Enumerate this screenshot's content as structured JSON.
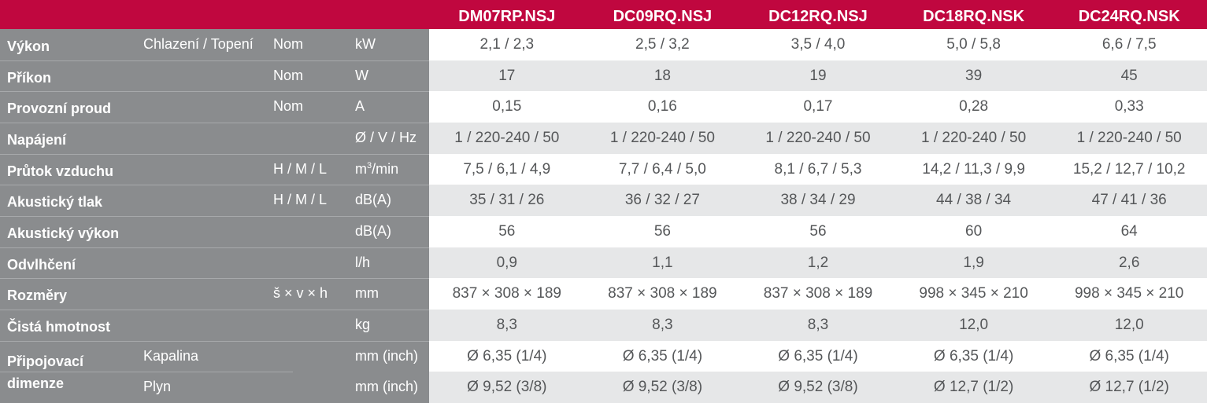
{
  "models": [
    "DM07RP.NSJ",
    "DC09RQ.NSJ",
    "DC12RQ.NSJ",
    "DC18RQ.NSK",
    "DC24RQ.NSK"
  ],
  "rows": [
    {
      "label": "Výkon",
      "sub": "Chlazení / Topení",
      "mode": "Nom",
      "unit": "kW",
      "values": [
        "2,1 / 2,3",
        "2,5 / 3,2",
        "3,5 / 4,0",
        "5,0 / 5,8",
        "6,6 / 7,5"
      ]
    },
    {
      "label": "Příkon",
      "sub": "",
      "mode": "Nom",
      "unit": "W",
      "values": [
        "17",
        "18",
        "19",
        "39",
        "45"
      ]
    },
    {
      "label": "Provozní proud",
      "sub": "",
      "mode": "Nom",
      "unit": "A",
      "values": [
        "0,15",
        "0,16",
        "0,17",
        "0,28",
        "0,33"
      ]
    },
    {
      "label": "Napájení",
      "sub": "",
      "mode": "",
      "unit": "Ø / V / Hz",
      "values": [
        "1 / 220-240 / 50",
        "1 / 220-240 / 50",
        "1 / 220-240 / 50",
        "1 / 220-240 / 50",
        "1 / 220-240 / 50"
      ]
    },
    {
      "label": "Průtok vzduchu",
      "sub": "",
      "mode": "H / M / L",
      "unit": "m",
      "unit_sup": "3",
      "unit_suffix": "/min",
      "values": [
        "7,5 / 6,1 / 4,9",
        "7,7 / 6,4 / 5,0",
        "8,1 / 6,7 / 5,3",
        "14,2 / 11,3 / 9,9",
        "15,2 / 12,7 / 10,2"
      ]
    },
    {
      "label": "Akustický tlak",
      "sub": "",
      "mode": "H / M / L",
      "unit": "dB(A)",
      "values": [
        "35 / 31 / 26",
        "36 / 32 / 27",
        "38 / 34 / 29",
        "44 / 38 / 34",
        "47 / 41 / 36"
      ]
    },
    {
      "label": "Akustický výkon",
      "sub": "",
      "mode": "",
      "unit": "dB(A)",
      "values": [
        "56",
        "56",
        "56",
        "60",
        "64"
      ]
    },
    {
      "label": "Odvlhčení",
      "sub": "",
      "mode": "",
      "unit": "l/h",
      "values": [
        "0,9",
        "1,1",
        "1,2",
        "1,9",
        "2,6"
      ]
    },
    {
      "label": "Rozměry",
      "sub": "",
      "mode": "š × v × h",
      "unit": "mm",
      "values": [
        "837 × 308 × 189",
        "837 × 308 × 189",
        "837 × 308 × 189",
        "998 × 345 × 210",
        "998 × 345 × 210"
      ]
    },
    {
      "label": "Čistá hmotnost",
      "sub": "",
      "mode": "",
      "unit": "kg",
      "values": [
        "8,3",
        "8,3",
        "8,3",
        "12,0",
        "12,0"
      ]
    }
  ],
  "connection": {
    "label_line1": "Připojovací",
    "label_line2": "dimenze",
    "rows": [
      {
        "sub": "Kapalina",
        "unit": "mm (inch)",
        "values": [
          "Ø 6,35 (1/4)",
          "Ø 6,35 (1/4)",
          "Ø 6,35 (1/4)",
          "Ø 6,35 (1/4)",
          "Ø 6,35 (1/4)"
        ]
      },
      {
        "sub": "Plyn",
        "unit": "mm (inch)",
        "values": [
          "Ø 9,52 (3/8)",
          "Ø 9,52 (3/8)",
          "Ø 9,52 (3/8)",
          "Ø 12,7 (1/2)",
          "Ø 12,7 (1/2)"
        ]
      }
    ]
  },
  "colors": {
    "header_bg": "#c0073f",
    "label_bg": "#8a8c8e",
    "stripe_bg": "#e6e7e8",
    "value_text": "#555759"
  }
}
